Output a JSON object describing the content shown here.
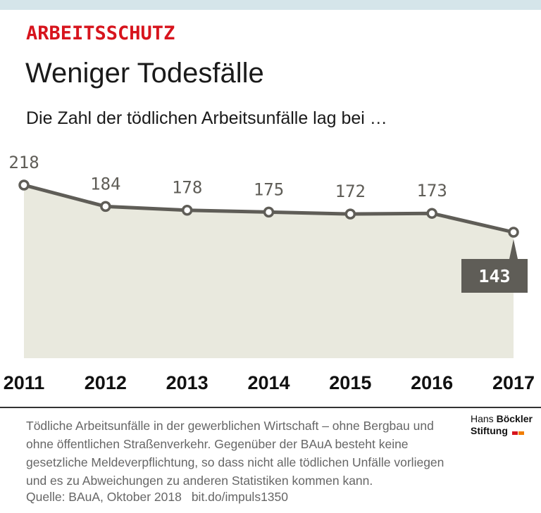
{
  "header": {
    "kicker": "ARBEITSSCHUTZ",
    "title": "Weniger Todesfälle",
    "subtitle": "Die Zahl der tödlichen Arbeitsunfälle lag bei …"
  },
  "chart_data": {
    "type": "area",
    "title": "Weniger Todesfälle",
    "x": [
      "2011",
      "2012",
      "2013",
      "2014",
      "2015",
      "2016",
      "2017"
    ],
    "series": [
      {
        "values": [
          218,
          184,
          178,
          175,
          172,
          173,
          143
        ]
      }
    ],
    "highlight": {
      "x": "2017",
      "value": 143
    },
    "grid": false,
    "colors": {
      "area": "#e9e9de",
      "line": "#5f5d57",
      "label": "#5f5d57",
      "highlight_box": "#5f5d57"
    }
  },
  "footer": {
    "note": "Tödliche Arbeitsunfälle in der gewerblichen Wirtschaft – ohne Bergbau und ohne öffentlichen Straßenverkehr. Gegenüber der BAuA besteht keine gesetzliche Meldeverpflichtung, so dass nicht alle tödlichen Unfälle vorliegen und es zu Abweichungen zu anderen Statistiken kommen kann.",
    "source": "Quelle: BAuA, Oktober 2018",
    "link": "bit.do/impuls1350",
    "brand": {
      "line1_a": "Hans",
      "line1_b": "Böckler",
      "line2": "Stiftung"
    },
    "brand_colors": [
      "#d7141d",
      "#f07d00"
    ]
  }
}
